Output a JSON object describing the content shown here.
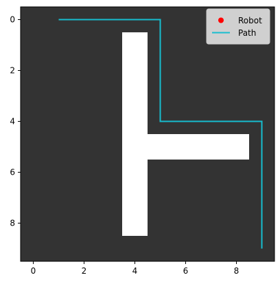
{
  "chart_data": {
    "type": "grid-path",
    "xlim": [
      -0.5,
      9.5
    ],
    "ylim": [
      -0.5,
      9.5
    ],
    "y_inverted": true,
    "xticks": [
      0,
      2,
      4,
      6,
      8
    ],
    "yticks": [
      0,
      2,
      4,
      6,
      8
    ],
    "xtick_labels": [
      "0",
      "2",
      "4",
      "6",
      "8"
    ],
    "ytick_labels": [
      "0",
      "2",
      "4",
      "6",
      "8"
    ],
    "grid": false,
    "background_color": "#333333",
    "obstacle_color": "#ffffff",
    "obstacles": [
      {
        "x0": 3.5,
        "x1": 4.5,
        "y0": 0.5,
        "y1": 8.5
      },
      {
        "x0": 4.5,
        "x1": 8.5,
        "y0": 4.5,
        "y1": 5.5
      }
    ],
    "series": [
      {
        "name": "Path",
        "color": "#17becf",
        "points": [
          [
            1,
            0
          ],
          [
            5,
            0
          ],
          [
            5,
            4
          ],
          [
            9,
            4
          ],
          [
            9,
            9
          ]
        ]
      }
    ],
    "robot": {
      "name": "Robot",
      "color": "#ff0000",
      "marker": "circle"
    },
    "legend": {
      "placement": "top-right",
      "entries": [
        {
          "label": "Robot",
          "marker": "dot",
          "color": "#ff0000"
        },
        {
          "label": "Path",
          "marker": "line",
          "color": "#17becf"
        }
      ]
    }
  }
}
